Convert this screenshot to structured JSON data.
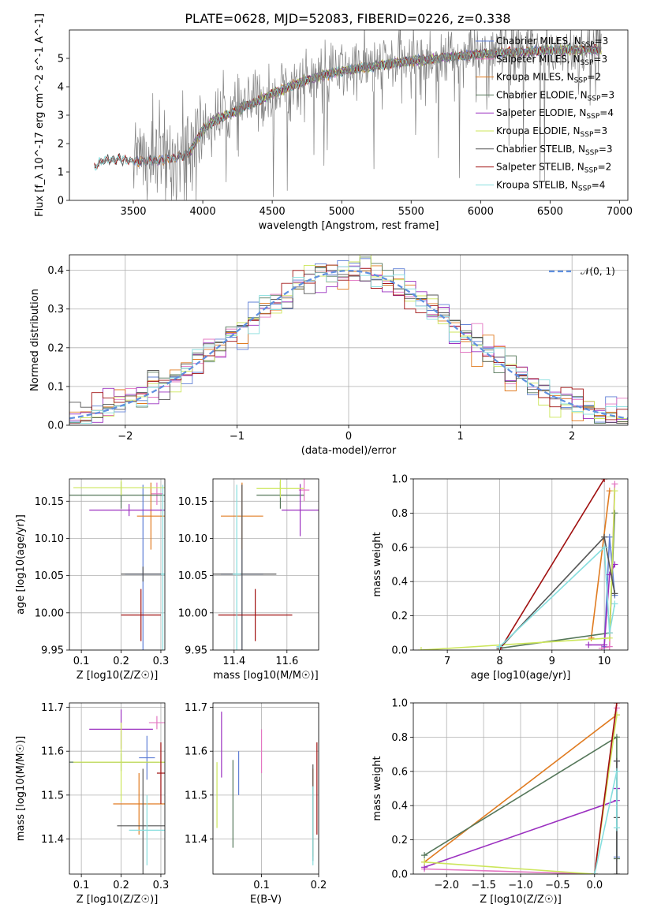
{
  "figure_title": "PLATE=0628, MJD=52083, FIBERID=0226, z=0.338",
  "colors": {
    "chabrier_miles": "#5f7fd6",
    "salpeter_miles": "#e377c2",
    "kroupa_miles": "#e07b20",
    "chabrier_elodie": "#55775a",
    "salpeter_elodie": "#9b30c0",
    "kroupa_elodie": "#cce65a",
    "chabrier_stelib": "#555555",
    "salpeter_stelib": "#a01010",
    "kroupa_stelib": "#86dede",
    "data_spectrum": "#808080",
    "gaussian": "#5f8fdf"
  },
  "chart_data": [
    {
      "id": "spectrum",
      "type": "line",
      "xlabel": "wavelength [Angstrom, rest frame]",
      "ylabel": "Flux [f_λ 10^-17 erg cm^-2 s^-1 A^-1]",
      "xlim": [
        3040,
        7060
      ],
      "ylim": [
        0,
        6.0
      ],
      "xticks": [
        3500,
        4000,
        4500,
        5000,
        5500,
        6000,
        6500,
        7000
      ],
      "yticks": [
        0,
        1,
        2,
        3,
        4,
        5
      ],
      "grid": false,
      "legend_position": "upper-right",
      "data_range": [
        3220,
        6870
      ],
      "continuum_shape": {
        "wavelength": [
          3220,
          3260,
          3300,
          3400,
          3500,
          3600,
          3700,
          3800,
          3900,
          4000,
          4100,
          4200,
          4300,
          4400,
          4500,
          4600,
          4700,
          4800,
          4900,
          5000,
          5200,
          5400,
          5600,
          5800,
          6000,
          6200,
          6400,
          6600,
          6870
        ],
        "flux": [
          1.15,
          1.35,
          1.42,
          1.45,
          1.4,
          1.38,
          1.42,
          1.5,
          1.65,
          2.5,
          2.85,
          3.05,
          3.3,
          3.5,
          3.75,
          3.95,
          4.15,
          4.3,
          4.45,
          4.55,
          4.7,
          4.85,
          4.95,
          5.05,
          5.15,
          5.2,
          5.25,
          5.3,
          5.3
        ]
      },
      "series": [
        {
          "name": "Chabrier MILES, N_SSP=3",
          "label_main": "Chabrier MILES, N",
          "label_sub": "SSP",
          "label_tail": "=3",
          "color_key": "chabrier_miles",
          "start": 3500
        },
        {
          "name": "Salpeter MILES, N_SSP=3",
          "label_main": "Salpeter MILES, N",
          "label_sub": "SSP",
          "label_tail": "=3",
          "color_key": "salpeter_miles",
          "start": 3500
        },
        {
          "name": "Kroupa MILES, N_SSP=2",
          "label_main": "Kroupa MILES, N",
          "label_sub": "SSP",
          "label_tail": "=2",
          "color_key": "kroupa_miles",
          "start": 3500
        },
        {
          "name": "Chabrier ELODIE, N_SSP=3",
          "label_main": "Chabrier ELODIE, N",
          "label_sub": "SSP",
          "label_tail": "=3",
          "color_key": "chabrier_elodie",
          "start": 3900
        },
        {
          "name": "Salpeter ELODIE, N_SSP=4",
          "label_main": "Salpeter ELODIE, N",
          "label_sub": "SSP",
          "label_tail": "=4",
          "color_key": "salpeter_elodie",
          "start": 3900
        },
        {
          "name": "Kroupa ELODIE, N_SSP=3",
          "label_main": "Kroupa ELODIE, N",
          "label_sub": "SSP",
          "label_tail": "=3",
          "color_key": "kroupa_elodie",
          "start": 3900
        },
        {
          "name": "Chabrier STELIB, N_SSP=3",
          "label_main": "Chabrier STELIB, N",
          "label_sub": "SSP",
          "label_tail": "=3",
          "color_key": "chabrier_stelib",
          "start": 3220
        },
        {
          "name": "Salpeter STELIB, N_SSP=2",
          "label_main": "Salpeter STELIB, N",
          "label_sub": "SSP",
          "label_tail": "=2",
          "color_key": "salpeter_stelib",
          "start": 3220
        },
        {
          "name": "Kroupa STELIB, N_SSP=4",
          "label_main": "Kroupa STELIB, N",
          "label_sub": "SSP",
          "label_tail": "=4",
          "color_key": "kroupa_stelib",
          "start": 3220
        }
      ]
    },
    {
      "id": "residuals",
      "type": "area",
      "xlabel": "(data-model)/error",
      "ylabel": "Normed distribution",
      "xlim": [
        -2.5,
        2.5
      ],
      "ylim": [
        0,
        0.44
      ],
      "xticks": [
        -2,
        -1,
        0,
        1,
        2
      ],
      "yticks": [
        0.0,
        0.1,
        0.2,
        0.3,
        0.4
      ],
      "grid": true,
      "legend_position": "upper-right",
      "gaussian_label": "𝒩(0, 1)",
      "bin_width": 0.1,
      "bin_start": -2.5,
      "n_bins": 50,
      "hist_colors": [
        "chabrier_miles",
        "salpeter_miles",
        "kroupa_miles",
        "chabrier_elodie",
        "salpeter_elodie",
        "kroupa_elodie",
        "chabrier_stelib",
        "salpeter_stelib",
        "kroupa_stelib"
      ]
    },
    {
      "id": "age_vs_Z",
      "type": "scatter",
      "xlabel": "Z [log10(Z/Z☉)]",
      "ylabel": "age [log10(age/yr)]",
      "xlim": [
        0.07,
        0.31
      ],
      "ylim": [
        9.95,
        10.18
      ],
      "xticks": [
        0.1,
        0.2,
        0.3
      ],
      "yticks": [
        9.95,
        10.0,
        10.05,
        10.1,
        10.15
      ],
      "grid": true,
      "points": [
        {
          "color_key": "chabrier_miles",
          "x": 0.255,
          "xerr": 0.045,
          "y": 10.052,
          "yerr": 0.12
        },
        {
          "color_key": "salpeter_miles",
          "x": 0.29,
          "xerr": 0.015,
          "y": 10.16,
          "yerr": 0.015
        },
        {
          "color_key": "kroupa_miles",
          "x": 0.275,
          "xerr": 0.035,
          "y": 10.13,
          "yerr": 0.045
        },
        {
          "color_key": "chabrier_elodie",
          "x": 0.2,
          "xerr": 0.13,
          "y": 10.158,
          "yerr": 0.018
        },
        {
          "color_key": "salpeter_elodie",
          "x": 0.22,
          "xerr": 0.1,
          "y": 10.138,
          "yerr": 0.008
        },
        {
          "color_key": "kroupa_elodie",
          "x": 0.2,
          "xerr": 0.12,
          "y": 10.168,
          "yerr": 0.01
        },
        {
          "color_key": "chabrier_stelib",
          "x": 0.255,
          "xerr": 0.055,
          "y": 10.052,
          "yerr": 0.01
        },
        {
          "color_key": "salpeter_stelib",
          "x": 0.25,
          "xerr": 0.05,
          "y": 9.997,
          "yerr": 0.035
        },
        {
          "color_key": "kroupa_stelib",
          "x": 0.305,
          "xerr": 0.005,
          "y": 10.052,
          "yerr": 0.12
        }
      ]
    },
    {
      "id": "age_vs_mass",
      "type": "scatter",
      "xlabel": "mass [log10(M/M☉)]",
      "ylabel": "",
      "xlim": [
        11.32,
        11.72
      ],
      "ylim": [
        9.95,
        10.18
      ],
      "xticks": [
        11.4,
        11.6
      ],
      "yticks": [
        9.95,
        10.0,
        10.05,
        10.1,
        10.15
      ],
      "grid": true,
      "points": [
        {
          "color_key": "chabrier_miles",
          "x": 11.43,
          "xerr": 0.08,
          "y": 10.052,
          "yerr": 0.12
        },
        {
          "color_key": "salpeter_miles",
          "x": 11.665,
          "xerr": 0.02,
          "y": 10.165,
          "yerr": 0.015
        },
        {
          "color_key": "kroupa_miles",
          "x": 11.43,
          "xerr": 0.08,
          "y": 10.13,
          "yerr": 0.045
        },
        {
          "color_key": "chabrier_elodie",
          "x": 11.575,
          "xerr": 0.09,
          "y": 10.158,
          "yerr": 0.018
        },
        {
          "color_key": "salpeter_elodie",
          "x": 11.65,
          "xerr": 0.07,
          "y": 10.138,
          "yerr": 0.035
        },
        {
          "color_key": "kroupa_elodie",
          "x": 11.575,
          "xerr": 0.09,
          "y": 10.167,
          "yerr": 0.012
        },
        {
          "color_key": "chabrier_stelib",
          "x": 11.43,
          "xerr": 0.13,
          "y": 10.052,
          "yerr": 0.12
        },
        {
          "color_key": "salpeter_stelib",
          "x": 11.48,
          "xerr": 0.14,
          "y": 9.997,
          "yerr": 0.035
        },
        {
          "color_key": "kroupa_stelib",
          "x": 11.41,
          "xerr": 0.015,
          "y": 10.052,
          "yerr": 0.12
        }
      ]
    },
    {
      "id": "massweight_vs_age",
      "type": "line",
      "xlabel": "age [log10(age/yr)]",
      "ylabel": "mass weight",
      "xlim": [
        6.35,
        10.45
      ],
      "ylim": [
        0,
        1.0
      ],
      "xticks": [
        7,
        8,
        9,
        10
      ],
      "yticks": [
        0.0,
        0.2,
        0.4,
        0.6,
        0.8,
        1.0
      ],
      "grid": true,
      "series": [
        {
          "color_key": "chabrier_miles",
          "x": [
            10.0,
            10.1,
            10.2
          ],
          "y": [
            0.02,
            0.66,
            0.32
          ]
        },
        {
          "color_key": "salpeter_miles",
          "x": [
            9.95,
            10.1,
            10.2
          ],
          "y": [
            0.01,
            0.02,
            0.97
          ]
        },
        {
          "color_key": "kroupa_miles",
          "x": [
            9.75,
            10.1
          ],
          "y": [
            0.07,
            0.93
          ]
        },
        {
          "color_key": "chabrier_elodie",
          "x": [
            8.0,
            10.1,
            10.2
          ],
          "y": [
            0.01,
            0.1,
            0.8
          ]
        },
        {
          "color_key": "salpeter_elodie",
          "x": [
            9.7,
            10.0,
            10.1,
            10.2
          ],
          "y": [
            0.03,
            0.03,
            0.44,
            0.5
          ]
        },
        {
          "color_key": "kroupa_elodie",
          "x": [
            6.5,
            10.1,
            10.2
          ],
          "y": [
            0.0,
            0.07,
            0.93
          ]
        },
        {
          "color_key": "chabrier_stelib",
          "x": [
            8.0,
            10.0,
            10.2
          ],
          "y": [
            0.01,
            0.66,
            0.33
          ]
        },
        {
          "color_key": "salpeter_stelib",
          "x": [
            8.0,
            10.0
          ],
          "y": [
            0.0,
            1.0
          ]
        },
        {
          "color_key": "kroupa_stelib",
          "x": [
            8.0,
            10.0,
            10.1,
            10.2
          ],
          "y": [
            0.02,
            0.6,
            0.1,
            0.27
          ]
        }
      ]
    },
    {
      "id": "mass_vs_Z",
      "type": "scatter",
      "xlabel": "Z [log10(Z/Z☉)]",
      "ylabel": "mass [log10(M/M☉)]",
      "xlim": [
        0.07,
        0.31
      ],
      "ylim": [
        11.32,
        11.71
      ],
      "xticks": [
        0.1,
        0.2,
        0.3
      ],
      "yticks": [
        11.4,
        11.5,
        11.6,
        11.7
      ],
      "grid": true,
      "points": [
        {
          "color_key": "chabrier_miles",
          "x": 0.265,
          "xerr": 0.02,
          "y": 11.585,
          "yerr": 0.05
        },
        {
          "color_key": "salpeter_miles",
          "x": 0.29,
          "xerr": 0.02,
          "y": 11.665,
          "yerr": 0.015
        },
        {
          "color_key": "kroupa_miles",
          "x": 0.245,
          "xerr": 0.065,
          "y": 11.48,
          "yerr": 0.07
        },
        {
          "color_key": "chabrier_elodie",
          "x": 0.2,
          "xerr": 0.13,
          "y": 11.575,
          "yerr": 0.02
        },
        {
          "color_key": "salpeter_elodie",
          "x": 0.2,
          "xerr": 0.08,
          "y": 11.65,
          "yerr": 0.045
        },
        {
          "color_key": "kroupa_elodie",
          "x": 0.2,
          "xerr": 0.12,
          "y": 11.575,
          "yerr": 0.09
        },
        {
          "color_key": "chabrier_stelib",
          "x": 0.255,
          "xerr": 0.065,
          "y": 11.43,
          "yerr": 0.13
        },
        {
          "color_key": "salpeter_stelib",
          "x": 0.3,
          "xerr": 0.01,
          "y": 11.55,
          "yerr": 0.07
        },
        {
          "color_key": "kroupa_stelib",
          "x": 0.265,
          "xerr": 0.045,
          "y": 11.42,
          "yerr": 0.08
        }
      ]
    },
    {
      "id": "mass_vs_EBV",
      "type": "scatter",
      "xlabel": "E(B-V)",
      "ylabel": "",
      "xlim": [
        0.015,
        0.2
      ],
      "ylim": [
        11.32,
        11.71
      ],
      "xticks": [
        0.1,
        0.2
      ],
      "yticks": [
        11.4,
        11.5,
        11.6,
        11.7
      ],
      "grid": true,
      "points": [
        {
          "color_key": "chabrier_miles",
          "x": 0.06,
          "y": 11.55,
          "yerr": 0.05
        },
        {
          "color_key": "salpeter_miles",
          "x": 0.1,
          "y": 11.6,
          "yerr": 0.05
        },
        {
          "color_key": "kroupa_miles",
          "x": 0.19,
          "y": 11.46,
          "yerr": 0.1
        },
        {
          "color_key": "chabrier_elodie",
          "x": 0.05,
          "y": 11.48,
          "yerr": 0.1
        },
        {
          "color_key": "salpeter_elodie",
          "x": 0.03,
          "y": 11.615,
          "yerr": 0.075
        },
        {
          "color_key": "kroupa_elodie",
          "x": 0.022,
          "y": 11.5,
          "yerr": 0.075
        },
        {
          "color_key": "chabrier_stelib",
          "x": 0.19,
          "y": 11.46,
          "yerr": 0.11
        },
        {
          "color_key": "salpeter_stelib",
          "x": 0.197,
          "y": 11.515,
          "yerr": 0.105
        },
        {
          "color_key": "kroupa_stelib",
          "x": 0.19,
          "y": 11.43,
          "yerr": 0.09
        }
      ]
    },
    {
      "id": "massweight_vs_Z",
      "type": "line",
      "xlabel": "Z [log10(Z/Z☉)]",
      "ylabel": "mass weight",
      "xlim": [
        -2.45,
        0.45
      ],
      "ylim": [
        0,
        1.0
      ],
      "xticks": [
        -2.0,
        -1.5,
        -1.0,
        -0.5,
        0.0
      ],
      "yticks": [
        0.0,
        0.2,
        0.4,
        0.6,
        0.8,
        1.0
      ],
      "grid": true,
      "series": [
        {
          "color_key": "chabrier_miles",
          "x": [
            0.3,
            0.3,
            0.3
          ],
          "y": [
            0.1,
            0.5,
            0.66
          ]
        },
        {
          "color_key": "salpeter_miles",
          "x": [
            -2.3,
            0.0,
            0.3
          ],
          "y": [
            0.03,
            0.0,
            0.97
          ]
        },
        {
          "color_key": "kroupa_miles",
          "x": [
            -2.3,
            0.3
          ],
          "y": [
            0.07,
            0.93
          ]
        },
        {
          "color_key": "chabrier_elodie",
          "x": [
            -2.3,
            0.3,
            0.3
          ],
          "y": [
            0.11,
            0.8,
            0.09
          ]
        },
        {
          "color_key": "salpeter_elodie",
          "x": [
            -2.3,
            0.3,
            0.3
          ],
          "y": [
            0.04,
            0.43,
            0.5
          ]
        },
        {
          "color_key": "kroupa_elodie",
          "x": [
            -2.3,
            0.0,
            0.3
          ],
          "y": [
            0.07,
            0.0,
            0.93
          ]
        },
        {
          "color_key": "chabrier_stelib",
          "x": [
            0.3,
            0.3,
            0.3
          ],
          "y": [
            0.33,
            0.66,
            0.0
          ]
        },
        {
          "color_key": "salpeter_stelib",
          "x": [
            0.0,
            0.3
          ],
          "y": [
            0.0,
            1.0
          ]
        },
        {
          "color_key": "kroupa_stelib",
          "x": [
            0.0,
            0.3,
            0.3
          ],
          "y": [
            0.0,
            0.6,
            0.27
          ]
        }
      ]
    }
  ]
}
